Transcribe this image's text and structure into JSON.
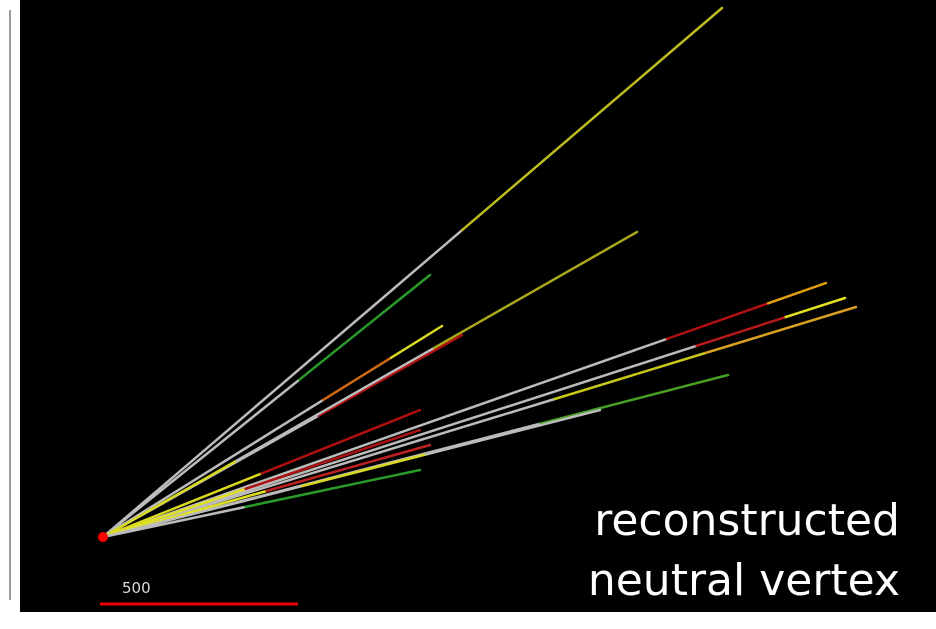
{
  "scale_label": "500",
  "caption": {
    "line1": "reconstructed",
    "line2": "neutral vertex"
  }
}
